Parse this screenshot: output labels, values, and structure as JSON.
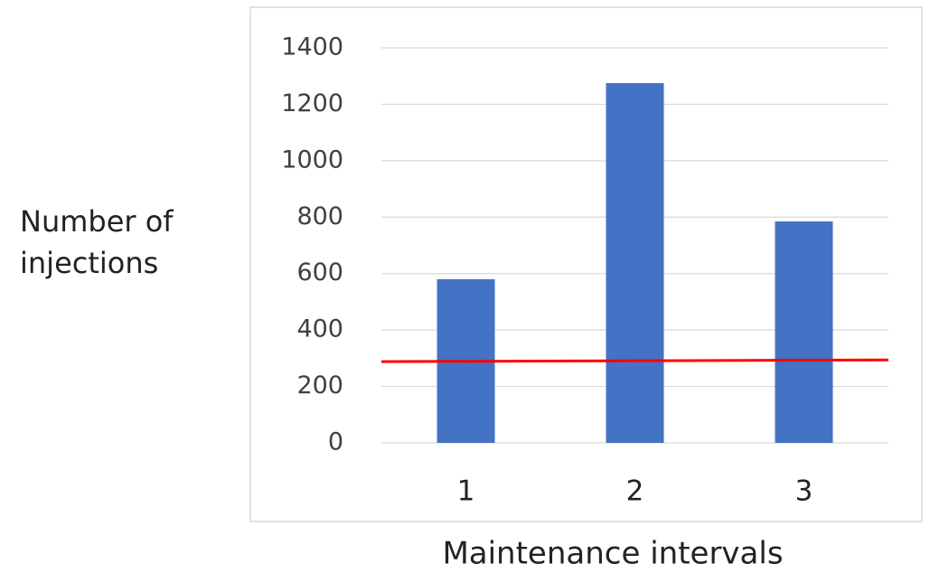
{
  "chart_data": {
    "type": "bar",
    "xlabel": "Maintenance intervals",
    "ylabel": "Number of injections",
    "categories": [
      "1",
      "2",
      "3"
    ],
    "values": [
      580,
      1275,
      785
    ],
    "color": "#4472c4",
    "ylim": [
      0,
      1400
    ],
    "yticks": [
      0,
      200,
      400,
      600,
      800,
      1000,
      1200,
      1400
    ],
    "grid": true,
    "reference_line": {
      "color": "#ff0000",
      "values": [
        288,
        294
      ]
    }
  }
}
